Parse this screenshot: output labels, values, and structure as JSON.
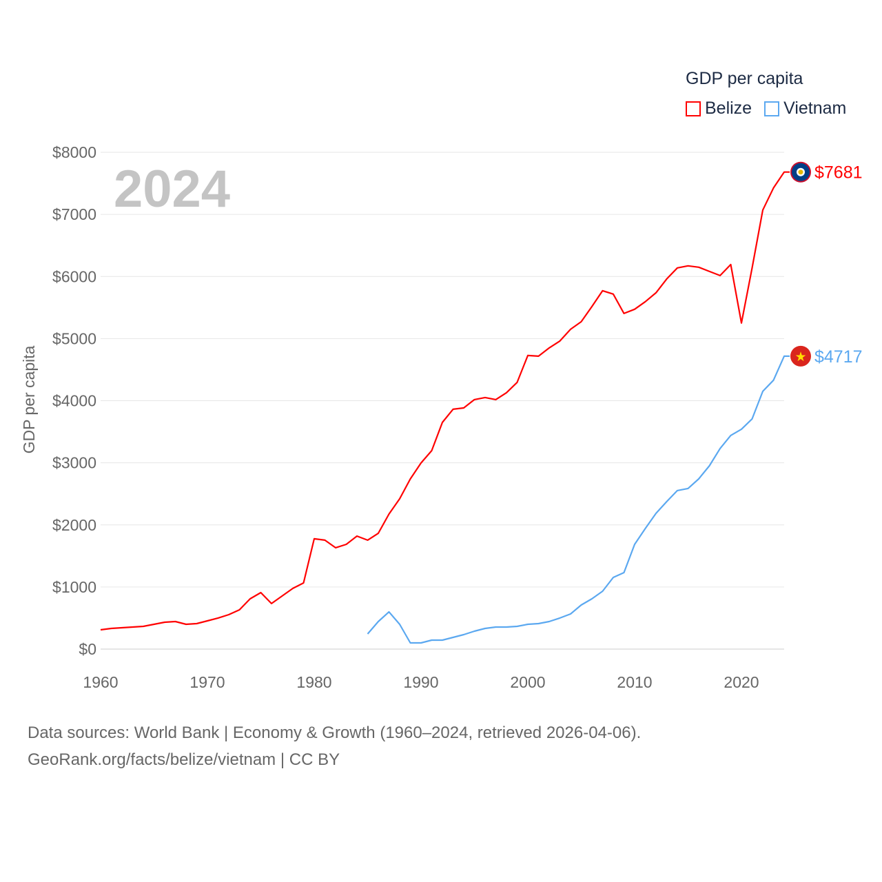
{
  "chart_data": {
    "type": "line",
    "title": "GDP per capita",
    "year_label": "2024",
    "ylabel": "GDP per capita",
    "xlabel": "",
    "xlim": [
      1960,
      2024
    ],
    "ylim": [
      0,
      8000
    ],
    "x_ticks": [
      "1960",
      "1970",
      "1980",
      "1990",
      "2000",
      "2010",
      "2020"
    ],
    "y_ticks": [
      "$0",
      "$1000",
      "$2000",
      "$3000",
      "$4000",
      "$5000",
      "$6000",
      "$7000",
      "$8000"
    ],
    "grid": true,
    "legend_position": "top-right",
    "series": [
      {
        "name": "Belize",
        "color": "#ff0000",
        "end_label": "$7681",
        "flag_icon": "belize-flag-icon",
        "start_year": 1960,
        "values": [
          311,
          333,
          344,
          355,
          366,
          400,
          433,
          444,
          400,
          411,
          455,
          500,
          555,
          633,
          810,
          910,
          733,
          855,
          977,
          1065,
          1776,
          1754,
          1632,
          1687,
          1820,
          1754,
          1865,
          2175,
          2420,
          2741,
          2997,
          3196,
          3651,
          3862,
          3884,
          4018,
          4051,
          4018,
          4129,
          4295,
          4728,
          4717,
          4850,
          4961,
          5150,
          5272,
          5516,
          5771,
          5716,
          5405,
          5472,
          5594,
          5738,
          5960,
          6138,
          6171,
          6149,
          6082,
          6015,
          6193,
          5250,
          6138,
          7070,
          7425,
          7681
        ]
      },
      {
        "name": "Vietnam",
        "color": "#5ba8f0",
        "end_label": "$4717",
        "flag_icon": "vietnam-flag-icon",
        "start_year": 1985,
        "values": [
          244,
          444,
          599,
          400,
          100,
          100,
          144,
          144,
          189,
          233,
          289,
          333,
          355,
          355,
          366,
          400,
          411,
          444,
          500,
          566,
          710,
          810,
          932,
          1154,
          1232,
          1687,
          1942,
          2186,
          2375,
          2553,
          2586,
          2741,
          2952,
          3230,
          3441,
          3541,
          3707,
          4151,
          4329,
          4717
        ]
      }
    ]
  },
  "footer": {
    "line1": "Data sources: World Bank | Economy & Growth (1960–2024, retrieved 2026-04-06).",
    "line2": "GeoRank.org/facts/belize/vietnam | CC BY"
  }
}
